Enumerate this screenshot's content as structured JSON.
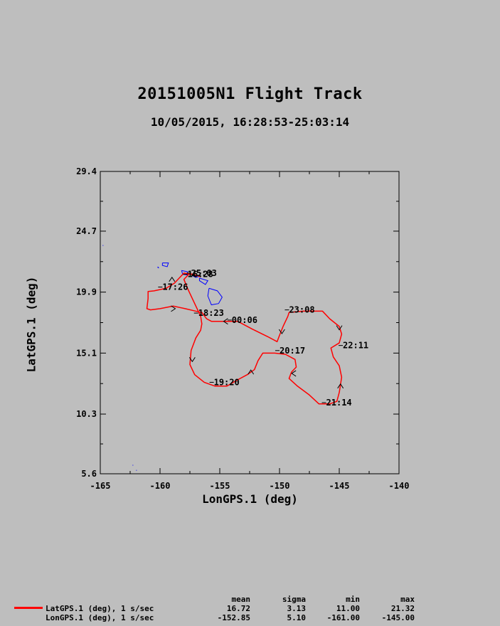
{
  "title": "20151005N1 Flight Track",
  "subtitle": "10/05/2015, 16:28:53-25:03:14",
  "chart_data": {
    "type": "line",
    "xlabel": "LonGPS.1 (deg)",
    "ylabel": "LatGPS.1 (deg)",
    "xlim": [
      -165,
      -140
    ],
    "ylim": [
      5.6,
      29.4
    ],
    "x_ticks": [
      "-165",
      "-160",
      "-155",
      "-150",
      "-145",
      "-140"
    ],
    "y_ticks": [
      "5.6",
      "10.3",
      "15.1",
      "19.9",
      "24.7",
      "29.4"
    ],
    "grid": false,
    "series": [
      {
        "name": "LatGPS.1 (deg), 1 s/sec",
        "color": "#ff0000",
        "points": [
          [
            -156.6,
            21.1
          ],
          [
            -156.9,
            21.2
          ],
          [
            -157.4,
            21.3
          ],
          [
            -158.0,
            21.4
          ],
          [
            -158.3,
            21.1
          ],
          [
            -158.8,
            20.6
          ],
          [
            -159.5,
            20.2
          ],
          [
            -160.5,
            20.0
          ],
          [
            -161.0,
            19.95
          ],
          [
            -161.0,
            19.4
          ],
          [
            -161.1,
            18.6
          ],
          [
            -160.8,
            18.5
          ],
          [
            -160.0,
            18.6
          ],
          [
            -158.9,
            18.8
          ],
          [
            -157.9,
            18.6
          ],
          [
            -157.0,
            18.4
          ],
          [
            -156.5,
            18.3
          ],
          [
            -156.1,
            17.8
          ],
          [
            -155.7,
            17.6
          ],
          [
            -155.0,
            17.6
          ],
          [
            -154.2,
            17.6
          ],
          [
            -153.5,
            17.6
          ],
          [
            -152.3,
            17.0
          ],
          [
            -151.0,
            16.4
          ],
          [
            -150.2,
            16.0
          ],
          [
            -150.0,
            16.5
          ],
          [
            -149.7,
            17.2
          ],
          [
            -149.3,
            18.0
          ],
          [
            -149.2,
            18.3
          ],
          [
            -148.0,
            18.4
          ],
          [
            -147.1,
            18.4
          ],
          [
            -146.4,
            18.4
          ],
          [
            -145.8,
            17.8
          ],
          [
            -145.0,
            17.2
          ],
          [
            -144.8,
            16.6
          ],
          [
            -145.0,
            15.9
          ],
          [
            -145.7,
            15.5
          ],
          [
            -145.5,
            14.8
          ],
          [
            -145.0,
            14.1
          ],
          [
            -144.8,
            13.2
          ],
          [
            -145.0,
            12.0
          ],
          [
            -145.2,
            11.3
          ],
          [
            -145.8,
            11.1
          ],
          [
            -146.7,
            11.1
          ],
          [
            -147.5,
            11.8
          ],
          [
            -148.5,
            12.5
          ],
          [
            -149.2,
            13.1
          ],
          [
            -149.0,
            13.6
          ],
          [
            -148.6,
            14.0
          ],
          [
            -148.7,
            14.6
          ],
          [
            -149.5,
            15.0
          ],
          [
            -150.4,
            15.1
          ],
          [
            -151.4,
            15.1
          ],
          [
            -151.8,
            14.5
          ],
          [
            -152.1,
            13.8
          ],
          [
            -152.7,
            13.4
          ],
          [
            -153.5,
            13.0
          ],
          [
            -154.4,
            12.5
          ],
          [
            -155.4,
            12.5
          ],
          [
            -156.3,
            12.8
          ],
          [
            -157.1,
            13.4
          ],
          [
            -157.5,
            14.2
          ],
          [
            -157.4,
            15.3
          ],
          [
            -157.0,
            16.3
          ],
          [
            -156.6,
            16.9
          ],
          [
            -156.5,
            17.4
          ],
          [
            -156.6,
            18.0
          ],
          [
            -157.2,
            19.2
          ],
          [
            -157.7,
            20.2
          ],
          [
            -158.0,
            20.9
          ],
          [
            -157.6,
            21.3
          ],
          [
            -157.0,
            21.35
          ]
        ]
      }
    ],
    "time_labels": [
      {
        "text": "16:28",
        "lon": -157.7,
        "lat": 21.3
      },
      {
        "text": "17:26",
        "lon": -159.8,
        "lat": 20.3
      },
      {
        "text": "18:23",
        "lon": -156.8,
        "lat": 18.25
      },
      {
        "text": "19:20",
        "lon": -155.5,
        "lat": 12.8
      },
      {
        "text": "20:17",
        "lon": -150.0,
        "lat": 15.3
      },
      {
        "text": "21:14",
        "lon": -146.1,
        "lat": 11.2
      },
      {
        "text": "22:11",
        "lon": -144.7,
        "lat": 15.7
      },
      {
        "text": "23:08",
        "lon": -149.2,
        "lat": 18.5
      },
      {
        "text": "00:06",
        "lon": -154.0,
        "lat": 17.7
      },
      {
        "text": "25:03",
        "lon": -157.4,
        "lat": 21.4
      }
    ],
    "direction_arrows": [
      {
        "lon": -159.0,
        "lat": 20.9,
        "dir": "up"
      },
      {
        "lon": -158.9,
        "lat": 18.6,
        "dir": "right"
      },
      {
        "lon": -154.5,
        "lat": 17.6,
        "dir": "left"
      },
      {
        "lon": -157.3,
        "lat": 14.6,
        "dir": "down"
      },
      {
        "lon": -152.4,
        "lat": 13.6,
        "dir": "up"
      },
      {
        "lon": -149.8,
        "lat": 16.8,
        "dir": "down"
      },
      {
        "lon": -145.0,
        "lat": 17.1,
        "dir": "down"
      },
      {
        "lon": -144.9,
        "lat": 12.5,
        "dir": "up"
      },
      {
        "lon": -148.8,
        "lat": 13.5,
        "dir": "left"
      }
    ],
    "coastlines": {
      "color": "#0000ff",
      "islands": [
        [
          [
            -155.9,
            20.2
          ],
          [
            -155.2,
            20.0
          ],
          [
            -154.8,
            19.5
          ],
          [
            -155.1,
            19.0
          ],
          [
            -155.7,
            18.9
          ],
          [
            -156.0,
            19.6
          ],
          [
            -155.9,
            20.2
          ]
        ],
        [
          [
            -156.7,
            21.0
          ],
          [
            -156.0,
            20.8
          ],
          [
            -156.2,
            20.5
          ],
          [
            -156.7,
            20.8
          ],
          [
            -156.7,
            21.0
          ]
        ],
        [
          [
            -157.3,
            21.2
          ],
          [
            -156.7,
            21.15
          ],
          [
            -157.0,
            21.05
          ],
          [
            -157.3,
            21.2
          ]
        ],
        [
          [
            -158.2,
            21.6
          ],
          [
            -157.7,
            21.5
          ],
          [
            -157.7,
            21.25
          ],
          [
            -158.1,
            21.3
          ],
          [
            -158.2,
            21.6
          ]
        ],
        [
          [
            -159.8,
            22.2
          ],
          [
            -159.3,
            22.2
          ],
          [
            -159.4,
            21.9
          ],
          [
            -159.8,
            22.0
          ],
          [
            -159.8,
            22.2
          ]
        ],
        [
          [
            -160.2,
            21.9
          ],
          [
            -160.1,
            21.8
          ],
          [
            -160.2,
            21.85
          ]
        ]
      ],
      "specks": [
        [
          -164.8,
          23.6
        ],
        [
          -162.3,
          6.3
        ],
        [
          -162.0,
          5.9
        ]
      ]
    }
  },
  "stats": {
    "headers": [
      "mean",
      "sigma",
      "min",
      "max"
    ],
    "rows": [
      {
        "label": "LatGPS.1 (deg), 1 s/sec",
        "values": [
          "16.72",
          "3.13",
          "11.00",
          "21.32"
        ],
        "color": "#ff0000"
      },
      {
        "label": "LonGPS.1 (deg), 1 s/sec",
        "values": [
          "-152.85",
          "5.10",
          "-161.00",
          "-145.00"
        ],
        "color": ""
      }
    ]
  }
}
